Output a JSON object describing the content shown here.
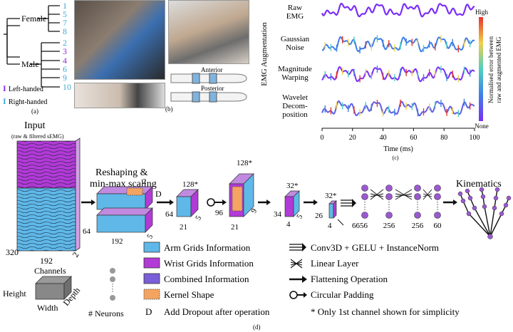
{
  "panel_a": {
    "female_label": "Female",
    "male_label": "Male",
    "female_ids": [
      "1",
      "5",
      "7",
      "8"
    ],
    "male_ids": [
      "2",
      "3",
      "4",
      "6",
      "9",
      "10"
    ],
    "left_handed_ids": [
      "3",
      "4"
    ],
    "legend_left": "Left-handed",
    "legend_right": "Right-handed",
    "legend_left_mark": "I",
    "legend_right_mark": "I",
    "caption": "(a)",
    "colors": {
      "left": "#8a2be2",
      "right": "#3fa7d6"
    }
  },
  "panel_b": {
    "caption": "(b)",
    "anterior_label": "Anterior",
    "posterior_label": "Posterior"
  },
  "panel_c": {
    "caption": "(c)",
    "side_title": "EMG Augmentation",
    "colorbar_high": "High",
    "colorbar_none": "None",
    "colorbar_label_1": "Normalised error between",
    "colorbar_label_2": "raw and augmented EMG"
  },
  "chart_data": {
    "type": "line",
    "xlabel": "Time (ms)",
    "x_ticks": [
      "0",
      "20",
      "40",
      "60",
      "80",
      "100"
    ],
    "xlim": [
      0,
      100
    ],
    "series": [
      {
        "name": "Raw EMG",
        "name_lines": [
          "Raw",
          "EMG"
        ]
      },
      {
        "name": "Gaussian Noise",
        "name_lines": [
          "Gaussian",
          "Noise"
        ]
      },
      {
        "name": "Magnitude Warping",
        "name_lines": [
          "Magnitude",
          "Warping"
        ]
      },
      {
        "name": "Wavelet Decomposition",
        "name_lines": [
          "Wavelet",
          "Decom-",
          "position"
        ]
      }
    ]
  },
  "panel_d": {
    "caption": "(d)",
    "input_title": "Input",
    "input_subtitle": "(raw & filtered sEMG)",
    "input_dims": [
      "320",
      "192",
      "2"
    ],
    "reshape_title_1": "Reshaping &",
    "reshape_title_2": "min-max scaling",
    "reshape_dims": [
      "2",
      "64",
      "192",
      "5"
    ],
    "dropout_mark": "D",
    "block1": [
      "128*",
      "64",
      "21",
      "5"
    ],
    "block2": [
      "128*",
      "96",
      "21",
      "9"
    ],
    "block3": [
      "32*",
      "34",
      "4",
      "5"
    ],
    "block4": [
      "32*",
      "26",
      "4"
    ],
    "neurons": [
      "6656",
      "256",
      "256",
      "60"
    ],
    "kinematics_title": "Kinematics",
    "legend": {
      "channels": "Channels",
      "height": "Height",
      "width": "Width",
      "depth": "Depth",
      "neurons": "# Neurons",
      "arm": "Arm Grids Information",
      "wrist": "Wrist Grids Information",
      "combined": "Combined Information",
      "kernel": "Kernel Shape",
      "dropout_key": "D",
      "dropout": "Add Dropout after operation",
      "conv": "Conv3D + GELU + InstanceNorm",
      "linear": "Linear Layer",
      "flatten": "Flattening Operation",
      "padding": "Circular Padding",
      "note": "* Only 1st channel shown for simplicity"
    },
    "colors": {
      "arm": "#5fb8e8",
      "wrist": "#b23ad6",
      "kernel": "#f4a460",
      "neuron": "#9b59d0"
    }
  }
}
